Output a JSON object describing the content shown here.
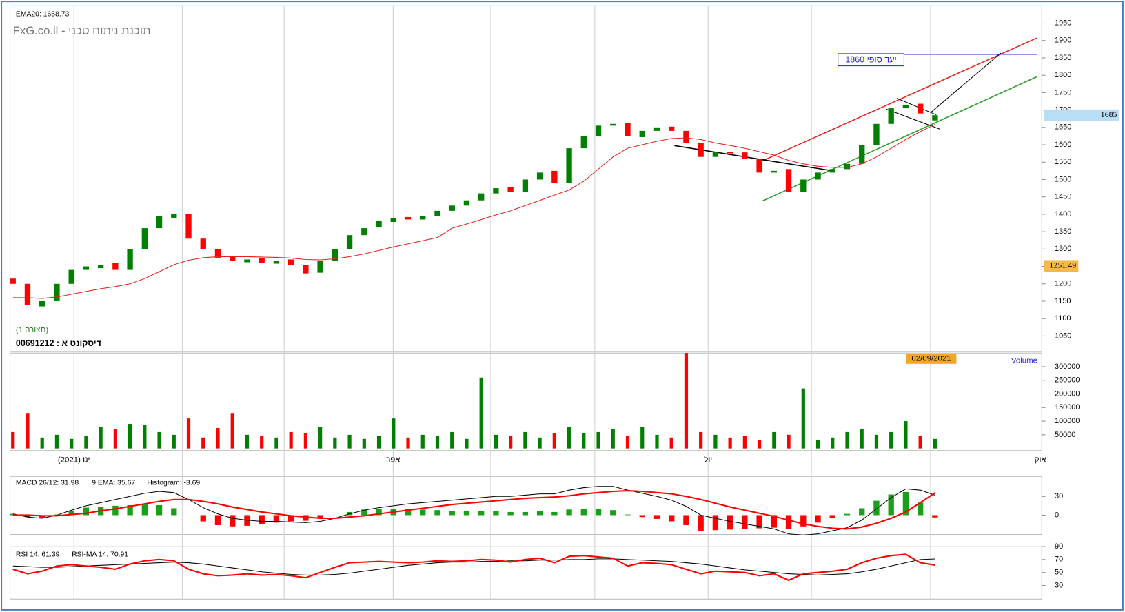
{
  "chart_data": [
    {
      "type": "candlestick",
      "title": "תוכנת ניתוח טכני - FxG.co.il",
      "subtitle": "(תצורה 1)",
      "symbol": "דיסקונט א : 00691212",
      "open": [
        1215,
        1200,
        1135,
        1150,
        1200,
        1240,
        1245,
        1260,
        1240,
        1300,
        1360,
        1390,
        1400,
        1330,
        1300,
        1280,
        1262,
        1275,
        1258,
        1270,
        1255,
        1232,
        1265,
        1300,
        1340,
        1362,
        1378,
        1392,
        1385,
        1395,
        1410,
        1425,
        1440,
        1460,
        1478,
        1465,
        1500,
        1525,
        1490,
        1590,
        1625,
        1655,
        1662,
        1622,
        1640,
        1652,
        1640,
        1605,
        1565,
        1580,
        1578,
        1560,
        1520,
        1530,
        1465,
        1500,
        1520,
        1530,
        1545,
        1600,
        1660,
        1705,
        1718,
        1670
      ],
      "close": [
        1200,
        1140,
        1150,
        1200,
        1240,
        1250,
        1255,
        1240,
        1300,
        1360,
        1395,
        1400,
        1330,
        1300,
        1275,
        1265,
        1270,
        1260,
        1265,
        1255,
        1230,
        1265,
        1300,
        1340,
        1360,
        1380,
        1390,
        1385,
        1395,
        1410,
        1425,
        1440,
        1460,
        1475,
        1465,
        1500,
        1520,
        1490,
        1590,
        1625,
        1655,
        1660,
        1625,
        1640,
        1650,
        1640,
        1605,
        1565,
        1580,
        1575,
        1560,
        1520,
        1525,
        1465,
        1500,
        1520,
        1530,
        1545,
        1600,
        1660,
        1705,
        1715,
        1690,
        1685
      ],
      "up_color": "#008000",
      "down_color": "#ff0000",
      "series": [
        {
          "name": "EMA20: 1658.73",
          "color": "#e8201c",
          "values": [
            1160,
            1160,
            1158,
            1162,
            1170,
            1178,
            1186,
            1192,
            1200,
            1215,
            1235,
            1255,
            1268,
            1275,
            1278,
            1278,
            1278,
            1277,
            1276,
            1274,
            1270,
            1269,
            1272,
            1278,
            1286,
            1296,
            1306,
            1315,
            1324,
            1333,
            1360,
            1372,
            1385,
            1398,
            1410,
            1425,
            1440,
            1455,
            1470,
            1495,
            1530,
            1565,
            1590,
            1600,
            1610,
            1618,
            1620,
            1615,
            1605,
            1598,
            1590,
            1580,
            1570,
            1555,
            1545,
            1538,
            1535,
            1535,
            1545,
            1565,
            1590,
            1615,
            1638,
            1658.73
          ]
        }
      ],
      "ylim": [
        1005,
        2000
      ],
      "yticks": [
        1050,
        1100,
        1150,
        1200,
        1250,
        1300,
        1350,
        1400,
        1450,
        1500,
        1550,
        1600,
        1650,
        1700,
        1750,
        1800,
        1850,
        1900,
        1950
      ],
      "last_price": 1685,
      "cursor_price": 1251.49,
      "target": {
        "label": "יעד סופי 1860",
        "value": 1860
      }
    },
    {
      "type": "bar",
      "title": "Volume",
      "date_label": "02/09/2021",
      "values": [
        60000,
        130000,
        40000,
        50000,
        35000,
        45000,
        80000,
        70000,
        90000,
        85000,
        60000,
        50000,
        110000,
        40000,
        75000,
        130000,
        50000,
        45000,
        40000,
        60000,
        55000,
        80000,
        40000,
        50000,
        35000,
        45000,
        110000,
        40000,
        50000,
        45000,
        60000,
        35000,
        260000,
        50000,
        45000,
        60000,
        40000,
        55000,
        80000,
        55000,
        60000,
        70000,
        45000,
        80000,
        50000,
        40000,
        350000,
        60000,
        50000,
        40000,
        45000,
        30000,
        60000,
        50000,
        220000,
        30000,
        40000,
        60000,
        70000,
        50000,
        60000,
        100000,
        45000,
        35000
      ],
      "ylim": [
        0,
        350000
      ],
      "yticks": [
        50000,
        100000,
        150000,
        200000,
        250000,
        300000
      ],
      "x_labels": [
        "ינו (2021)",
        "אפר",
        "יול",
        "אוק"
      ]
    },
    {
      "type": "macd",
      "series": [
        {
          "name": "MACD 26/12: 31.98",
          "color": "#000000",
          "values": [
            2,
            -3,
            -5,
            0,
            8,
            15,
            20,
            25,
            30,
            35,
            38,
            36,
            25,
            12,
            2,
            -5,
            -8,
            -10,
            -10,
            -11,
            -12,
            -10,
            -5,
            2,
            8,
            12,
            15,
            18,
            20,
            22,
            24,
            26,
            28,
            30,
            30,
            32,
            34,
            34,
            40,
            44,
            46,
            46,
            40,
            35,
            30,
            24,
            14,
            0,
            -5,
            -10,
            -14,
            -18,
            -22,
            -30,
            -32,
            -30,
            -25,
            -20,
            -8,
            10,
            28,
            42,
            40,
            31.98
          ]
        },
        {
          "name": "9 EMA: 35.67",
          "color": "#ff0000",
          "values": [
            0,
            0,
            -1,
            -1,
            1,
            3,
            7,
            10,
            14,
            18,
            22,
            25,
            25,
            22,
            18,
            13,
            9,
            5,
            2,
            -1,
            -3,
            -5,
            -5,
            -3,
            -1,
            2,
            5,
            8,
            11,
            14,
            17,
            19,
            21,
            23,
            25,
            27,
            28,
            29,
            31,
            34,
            36,
            38,
            39,
            38,
            36,
            34,
            30,
            25,
            19,
            13,
            8,
            3,
            -2,
            -8,
            -14,
            -18,
            -21,
            -22,
            -19,
            -13,
            -5,
            5,
            20,
            35.67
          ]
        },
        {
          "name": "Histogram: -3.69",
          "color": "#e8201c",
          "values": [
            2,
            -3,
            -4,
            1,
            7,
            12,
            13,
            15,
            16,
            17,
            16,
            11,
            0,
            -10,
            -16,
            -18,
            -17,
            -15,
            -12,
            -10,
            -9,
            -5,
            0,
            5,
            9,
            10,
            10,
            10,
            9,
            8,
            7,
            7,
            7,
            7,
            5,
            5,
            6,
            5,
            9,
            10,
            10,
            8,
            1,
            -3,
            -6,
            -10,
            -16,
            -25,
            -24,
            -23,
            -22,
            -21,
            -20,
            -22,
            -18,
            -12,
            -4,
            2,
            11,
            23,
            33,
            37,
            20,
            -3.69
          ]
        }
      ],
      "up_color": "#19a019",
      "down_color": "#ff0000",
      "ylim": [
        -31,
        62
      ],
      "yticks": [
        0,
        30
      ]
    },
    {
      "type": "line",
      "series": [
        {
          "name": "RSI 14: 61.39",
          "color": "#ff0000",
          "values": [
            55,
            48,
            52,
            60,
            62,
            60,
            58,
            55,
            63,
            68,
            70,
            68,
            55,
            48,
            45,
            46,
            48,
            46,
            47,
            45,
            42,
            50,
            58,
            65,
            66,
            67,
            66,
            65,
            66,
            68,
            67,
            68,
            70,
            69,
            66,
            70,
            72,
            65,
            75,
            76,
            74,
            72,
            60,
            65,
            64,
            62,
            55,
            48,
            52,
            51,
            50,
            45,
            48,
            38,
            48,
            50,
            52,
            55,
            65,
            72,
            76,
            78,
            65,
            61.39
          ]
        },
        {
          "name": "RSI-MA 14: 70.91",
          "color": "#000000",
          "values": [
            60,
            59,
            58,
            58,
            59,
            60,
            61,
            62,
            63,
            64,
            65,
            66,
            65,
            63,
            60,
            57,
            54,
            51,
            49,
            47,
            46,
            46,
            47,
            49,
            52,
            55,
            58,
            61,
            63,
            65,
            66,
            66,
            67,
            67,
            68,
            68,
            69,
            69,
            70,
            70,
            71,
            71,
            70,
            69,
            68,
            67,
            65,
            63,
            60,
            57,
            54,
            52,
            50,
            48,
            47,
            46,
            47,
            48,
            51,
            55,
            60,
            65,
            70,
            70.91
          ]
        }
      ],
      "ylim": [
        9,
        103
      ],
      "yticks": [
        30,
        50,
        70,
        90
      ]
    }
  ]
}
